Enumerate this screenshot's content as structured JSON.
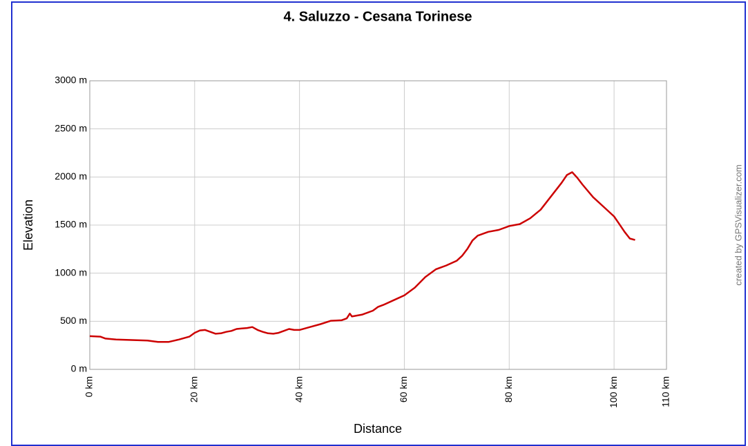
{
  "chart_data": {
    "type": "line",
    "title": "4.  Saluzzo - Cesana Torinese",
    "x_label": "Distance",
    "y_label": "Elevation",
    "credit": "created by GPSVisualizer.com",
    "color": "#cc0000",
    "grid": true,
    "xlim": [
      0,
      110
    ],
    "xticks": [
      {
        "value": 0,
        "label": "0 km"
      },
      {
        "value": 20,
        "label": "20 km"
      },
      {
        "value": 40,
        "label": "40 km"
      },
      {
        "value": 60,
        "label": "60 km"
      },
      {
        "value": 80,
        "label": "80 km"
      },
      {
        "value": 100,
        "label": "100 km"
      },
      {
        "value": 110,
        "label": "110 km"
      }
    ],
    "ylim": [
      0,
      3000
    ],
    "yticks": [
      {
        "value": 0,
        "label": "0 m"
      },
      {
        "value": 500,
        "label": "500 m"
      },
      {
        "value": 1000,
        "label": "1000 m"
      },
      {
        "value": 1500,
        "label": "1500 m"
      },
      {
        "value": 2000,
        "label": "2000 m"
      },
      {
        "value": 2500,
        "label": "2500 m"
      },
      {
        "value": 3000,
        "label": "3000 m"
      }
    ],
    "x": [
      0,
      2,
      3,
      5,
      8,
      11,
      13,
      15,
      17,
      19,
      20,
      21,
      22,
      23,
      24,
      25,
      26,
      27,
      28,
      29,
      30,
      31,
      32,
      33,
      34,
      35,
      36,
      37,
      38,
      39,
      40,
      42,
      44,
      46,
      48,
      49,
      49.6,
      50,
      52,
      54,
      55,
      56,
      58,
      60,
      62,
      64,
      66,
      68,
      70,
      71,
      72,
      73,
      74,
      76,
      78,
      80,
      82,
      84,
      86,
      88,
      90,
      91,
      92,
      93,
      94,
      96,
      98,
      100,
      101,
      102,
      103,
      104
    ],
    "values": [
      345,
      340,
      320,
      310,
      305,
      300,
      285,
      285,
      310,
      340,
      380,
      405,
      410,
      390,
      370,
      375,
      390,
      400,
      420,
      425,
      430,
      440,
      410,
      390,
      375,
      370,
      380,
      400,
      420,
      410,
      410,
      440,
      470,
      505,
      510,
      530,
      580,
      550,
      570,
      610,
      650,
      670,
      720,
      770,
      850,
      960,
      1040,
      1080,
      1130,
      1180,
      1250,
      1340,
      1390,
      1430,
      1450,
      1490,
      1510,
      1570,
      1660,
      1800,
      1940,
      2020,
      2050,
      1990,
      1920,
      1790,
      1690,
      1590,
      1510,
      1430,
      1360,
      1345
    ]
  }
}
